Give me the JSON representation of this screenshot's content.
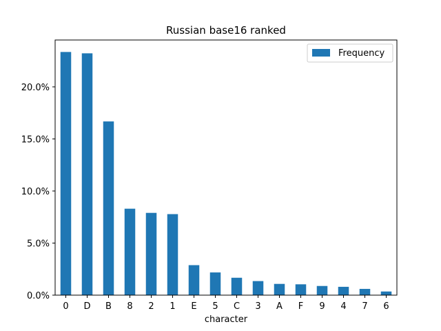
{
  "chart_data": {
    "type": "bar",
    "title": "Russian base16 ranked",
    "xlabel": "character",
    "ylabel": "",
    "categories": [
      "0",
      "D",
      "B",
      "8",
      "2",
      "1",
      "E",
      "5",
      "C",
      "3",
      "A",
      "F",
      "9",
      "4",
      "7",
      "6"
    ],
    "series": [
      {
        "name": "Frequency",
        "values": [
          0.2335,
          0.2322,
          0.1668,
          0.083,
          0.079,
          0.0778,
          0.0288,
          0.0218,
          0.0167,
          0.0135,
          0.0108,
          0.0104,
          0.0088,
          0.008,
          0.006,
          0.0035
        ],
        "color": "#1f77b4"
      }
    ],
    "ylim": [
      0,
      0.245
    ],
    "yticks": [
      0,
      0.05,
      0.1,
      0.15,
      0.2
    ],
    "ytick_labels": [
      "0.0%",
      "5.0%",
      "10.0%",
      "15.0%",
      "20.0%"
    ],
    "grid": false,
    "legend_position": "top-right"
  }
}
